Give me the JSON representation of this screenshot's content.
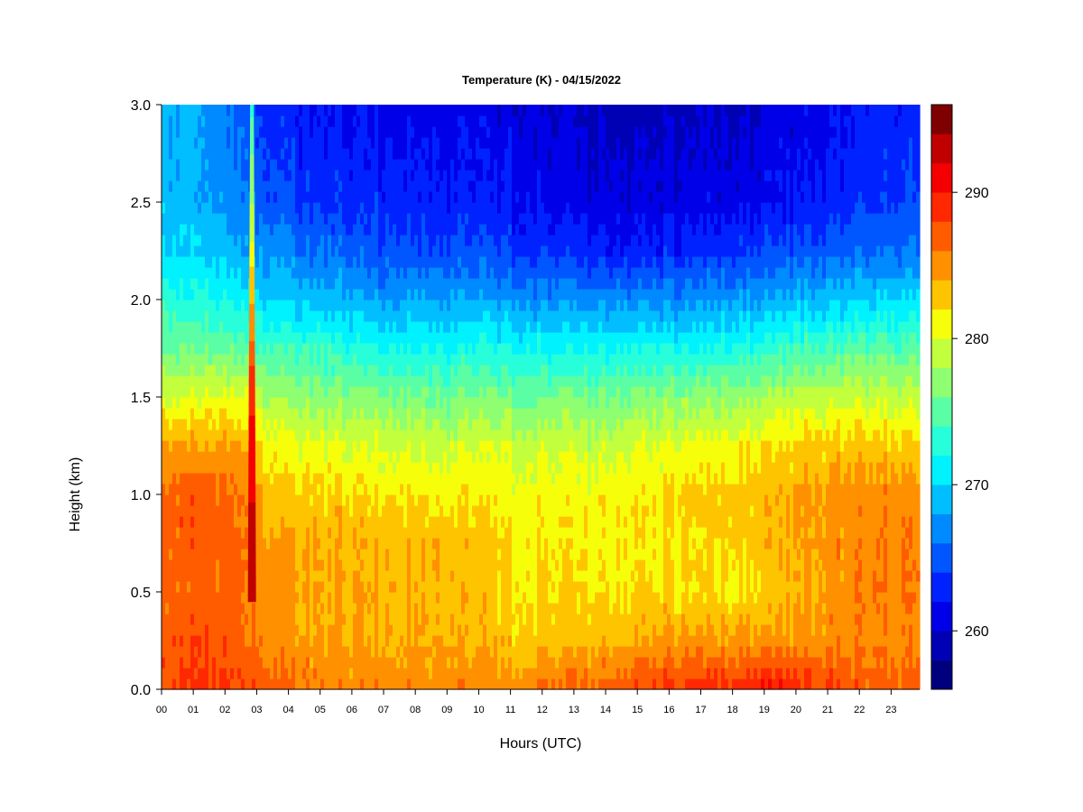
{
  "chart_data": {
    "type": "heatmap",
    "title": "Temperature (K) - 04/15/2022",
    "xlabel": "Hours (UTC)",
    "ylabel": "Height (km)",
    "xlim": [
      0,
      23.9
    ],
    "ylim": [
      0,
      3.0
    ],
    "x_ticks": [
      "00",
      "01",
      "02",
      "03",
      "04",
      "05",
      "06",
      "07",
      "08",
      "09",
      "10",
      "11",
      "12",
      "13",
      "14",
      "15",
      "16",
      "17",
      "18",
      "19",
      "20",
      "21",
      "22",
      "23"
    ],
    "y_ticks": [
      "0.0",
      "0.5",
      "1.0",
      "1.5",
      "2.0",
      "2.5",
      "3.0"
    ],
    "colorbar": {
      "label": "",
      "range": [
        256,
        296
      ],
      "levels": 20,
      "ticks": [
        "260",
        "270",
        "280",
        "290"
      ],
      "tick_values": [
        260,
        270,
        280,
        290
      ]
    },
    "colormap": [
      "#00007f",
      "#0000b4",
      "#0000e8",
      "#0022ff",
      "#0056ff",
      "#008aff",
      "#00beff",
      "#00f2ff",
      "#26ffd9",
      "#5affa5",
      "#8eff71",
      "#c2ff3d",
      "#f6ff09",
      "#ffc400",
      "#ff9000",
      "#ff5c00",
      "#ff2800",
      "#f40000",
      "#c00000",
      "#7f0000"
    ],
    "profiles": [
      {
        "hour": 0.0,
        "temps": [
          287.5,
          287,
          286.5,
          287,
          287,
          284,
          280,
          276,
          273,
          270,
          269.5,
          269
        ]
      },
      {
        "hour": 1.0,
        "temps": [
          288,
          287.5,
          286.5,
          287,
          287,
          284,
          279.5,
          275.5,
          272,
          270,
          268,
          268
        ]
      },
      {
        "hour": 2.0,
        "temps": [
          288,
          287,
          286.5,
          286.5,
          286,
          284,
          280,
          275,
          271.5,
          268.5,
          267,
          266
        ]
      },
      {
        "hour": 2.7,
        "temps": [
          288,
          286,
          286,
          286,
          285.5,
          283.5,
          280,
          275,
          271,
          268,
          266,
          265
        ]
      },
      {
        "hour": 3.5,
        "temps": [
          287,
          285,
          285,
          284.5,
          283,
          281,
          278,
          274,
          270,
          267,
          264.5,
          263
        ]
      },
      {
        "hour": 5.0,
        "temps": [
          286,
          284,
          284,
          284,
          282.5,
          280.5,
          277,
          273.5,
          269,
          266,
          263.5,
          262
        ]
      },
      {
        "hour": 7.0,
        "temps": [
          285.5,
          284,
          284,
          283.5,
          282,
          280,
          276.5,
          272,
          268,
          265,
          263,
          261.5
        ]
      },
      {
        "hour": 9.0,
        "temps": [
          285.5,
          284,
          283.5,
          283.5,
          281.5,
          279.5,
          276,
          272,
          268,
          264.5,
          262.5,
          261
        ]
      },
      {
        "hour": 11.0,
        "temps": [
          285,
          283,
          282,
          282,
          281,
          279.5,
          276,
          272,
          267.5,
          264,
          262,
          260.5
        ]
      },
      {
        "hour": 13.0,
        "temps": [
          286.5,
          283,
          282,
          281.5,
          281,
          279,
          276,
          271.5,
          267,
          263,
          261,
          259.5
        ]
      },
      {
        "hour": 15.0,
        "temps": [
          287.5,
          284,
          282,
          281.5,
          281.5,
          280,
          276.5,
          272,
          267,
          262.5,
          260.5,
          259
        ]
      },
      {
        "hour": 17.0,
        "temps": [
          289,
          284.5,
          282,
          282,
          282.5,
          280.5,
          277,
          272,
          267.5,
          263,
          261,
          259.5
        ]
      },
      {
        "hour": 19.0,
        "temps": [
          290,
          285,
          282,
          283,
          283.5,
          281.5,
          278,
          273,
          268,
          264,
          261.5,
          260
        ]
      },
      {
        "hour": 20.5,
        "temps": [
          288.5,
          285,
          284,
          284.5,
          284.5,
          282.5,
          279,
          274,
          269,
          265,
          262.5,
          261
        ]
      },
      {
        "hour": 22.5,
        "temps": [
          287,
          285.5,
          286,
          286,
          285.5,
          283,
          279.5,
          275,
          270,
          266,
          264,
          262.5
        ]
      },
      {
        "hour": 23.9,
        "temps": [
          287,
          286,
          286,
          286,
          285.5,
          283,
          279.5,
          275,
          270.5,
          266.5,
          264.5,
          263
        ]
      }
    ],
    "profile_heights_km": [
      0.0,
      0.25,
      0.5,
      0.75,
      1.0,
      1.25,
      1.5,
      1.75,
      2.0,
      2.25,
      2.5,
      3.0
    ],
    "warm_streak": {
      "hour": 2.85,
      "bottom_km": 0.45,
      "top_km": 3.0,
      "peak_temp": 293
    }
  }
}
